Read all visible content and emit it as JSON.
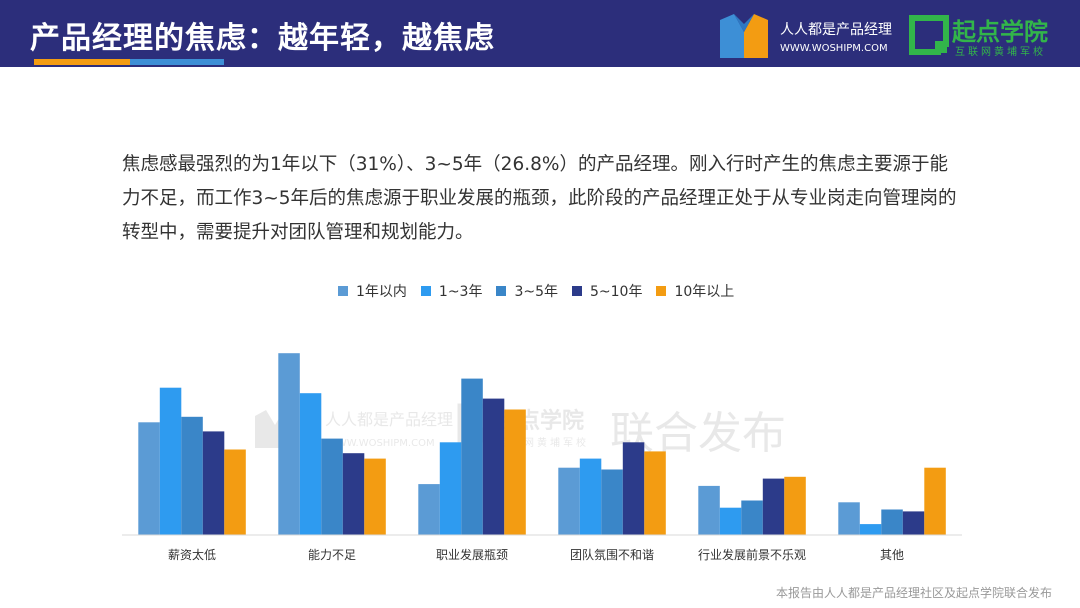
{
  "header": {
    "title": "产品经理的焦虑：越年轻，越焦虑",
    "logo1": {
      "name": "人人都是产品经理",
      "url": "WWW.WOSHIPM.COM"
    },
    "logo2": {
      "name": "起点学院",
      "slogan": "互联网黄埔军校"
    }
  },
  "description": "焦虑感最强烈的为1年以下（31%）、3~5年（26.8%）的产品经理。刚入行时产生的焦虑主要源于能力不足，而工作3~5年后的焦虑源于职业发展的瓶颈，此阶段的产品经理正处于从专业岗走向管理岗的转型中，需要提升对团队管理和规划能力。",
  "watermark": {
    "text": "联合发布",
    "logo1_name": "人人都是产品经理",
    "logo1_url": "WWW.WOSHIPM.COM",
    "logo2_name": "起点学院",
    "logo2_slogan": "互联网黄埔军校"
  },
  "footer": "本报告由人人都是产品经理社区及起点学院联合发布",
  "chart_data": {
    "type": "bar",
    "categories": [
      "薪资太低",
      "能力不足",
      "职业发展瓶颈",
      "团队氛围不和谐",
      "行业发展前景不乐观",
      "其他"
    ],
    "series": [
      {
        "name": "1年以内",
        "color": "#5b9bd5",
        "values": [
          62,
          100,
          28,
          37,
          27,
          18
        ]
      },
      {
        "name": "1~3年",
        "color": "#2e9bf0",
        "values": [
          81,
          78,
          51,
          42,
          15,
          6
        ]
      },
      {
        "name": "3~5年",
        "color": "#3a86c8",
        "values": [
          65,
          53,
          86,
          36,
          19,
          14
        ]
      },
      {
        "name": "5~10年",
        "color": "#2c3b8a",
        "values": [
          57,
          45,
          75,
          51,
          31,
          13
        ]
      },
      {
        "name": "10年以上",
        "color": "#f39c12",
        "values": [
          47,
          42,
          69,
          46,
          32,
          37
        ]
      }
    ],
    "ylim": [
      0,
      110
    ],
    "legend": "top-center",
    "grid": false
  }
}
